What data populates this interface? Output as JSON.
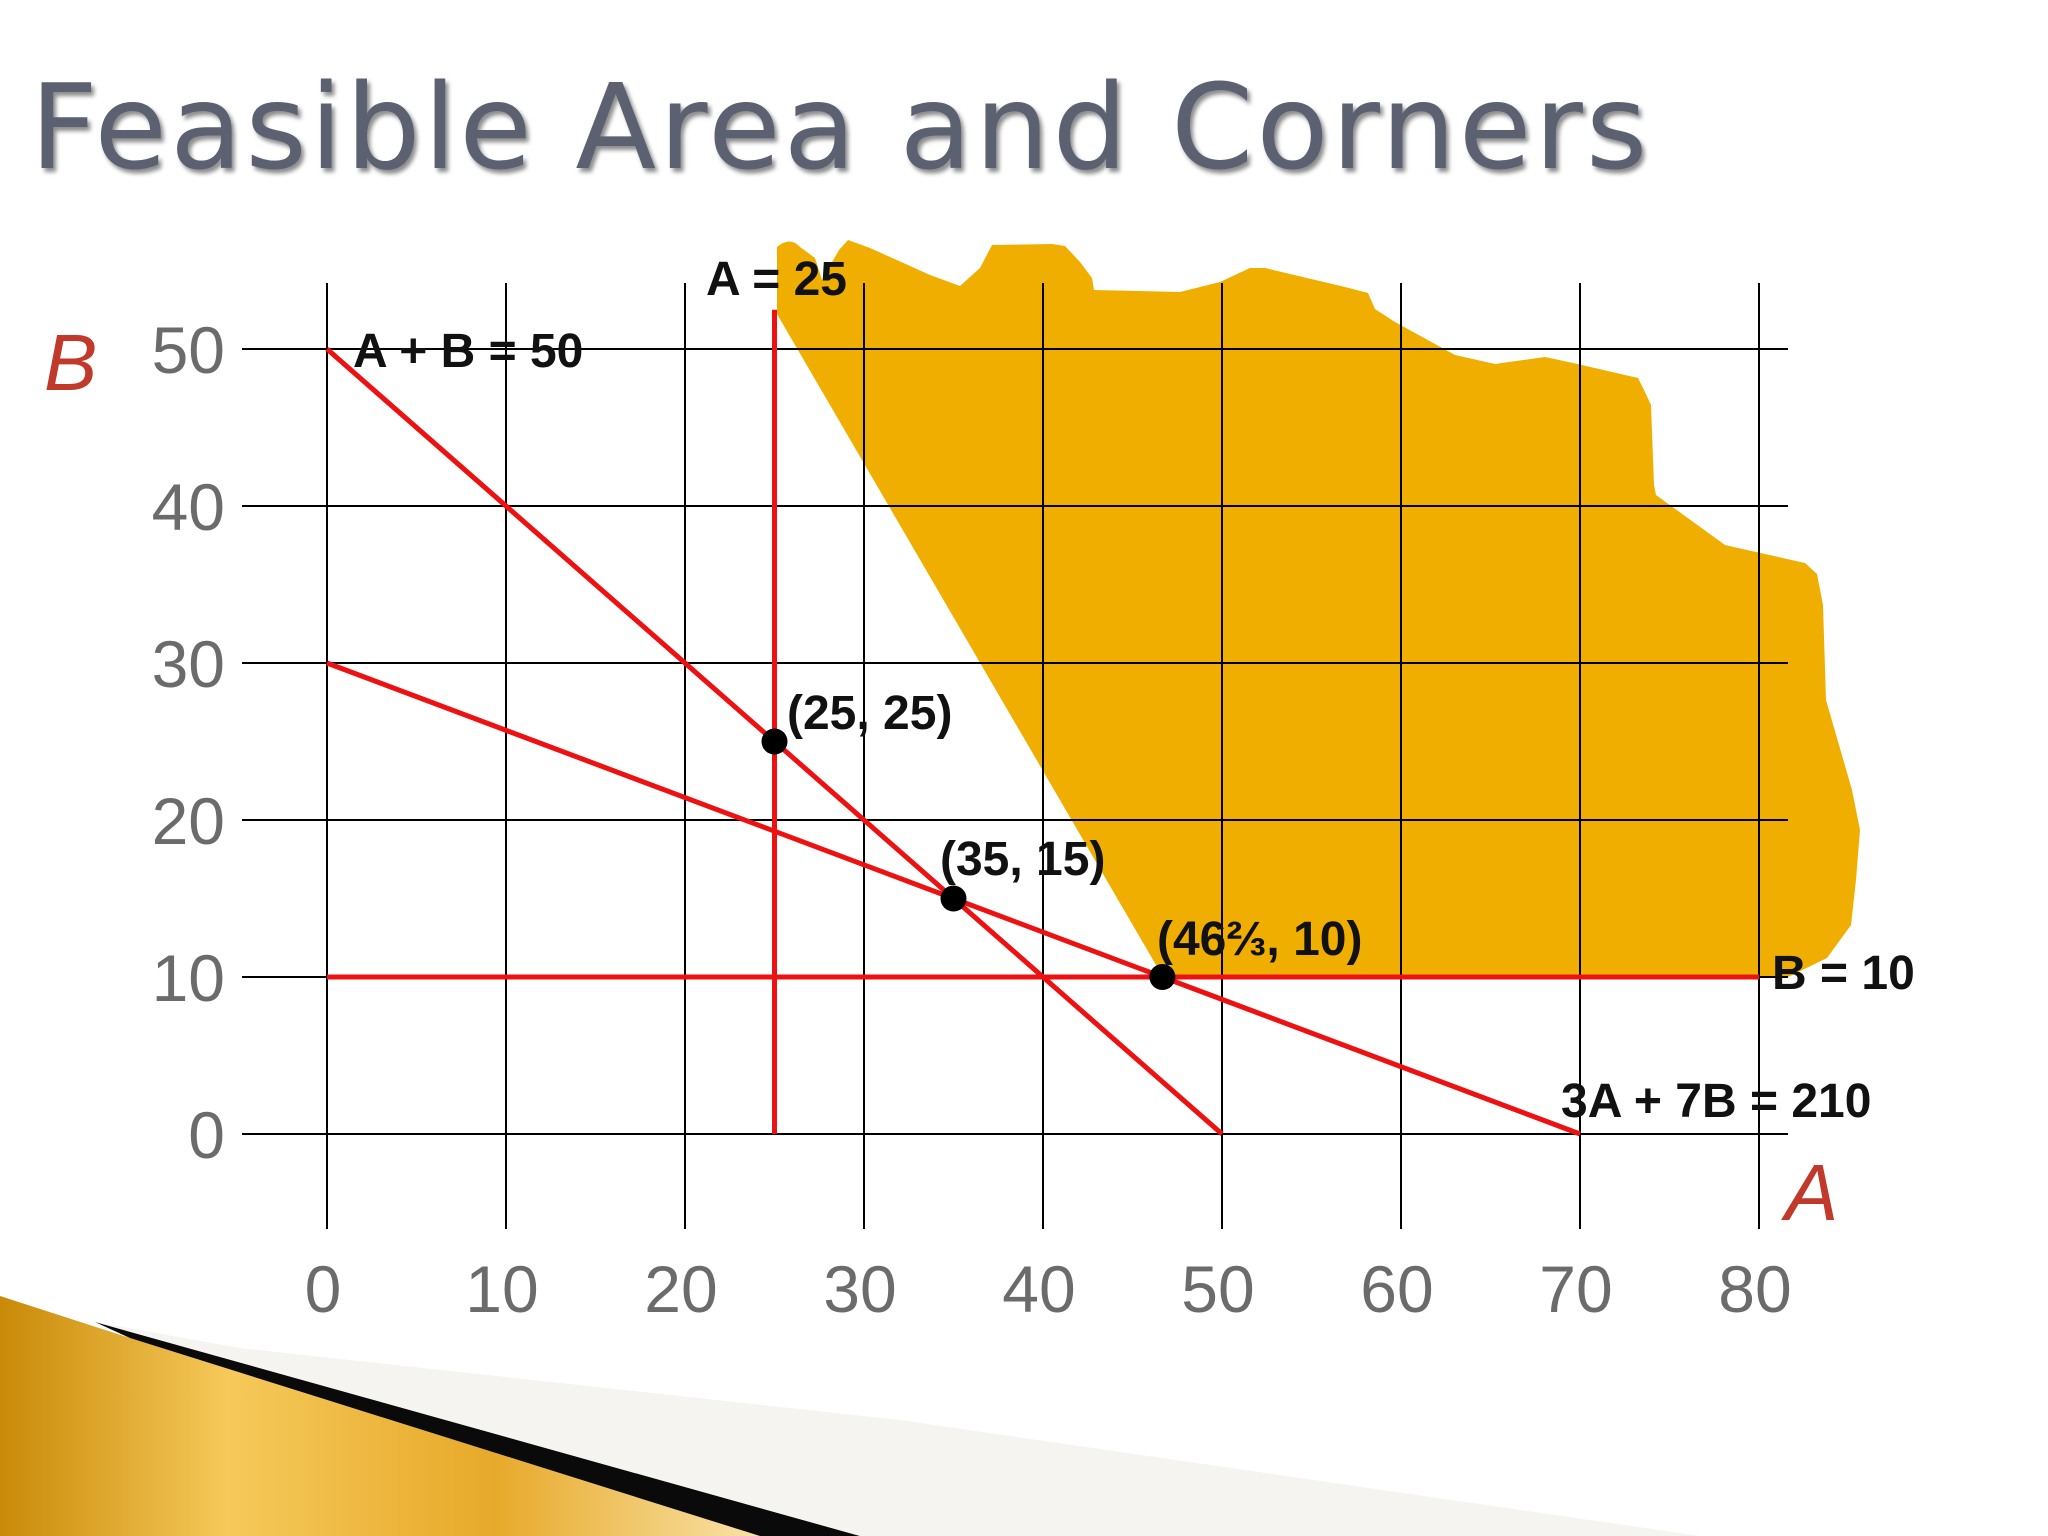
{
  "slide": {
    "title": "Feasible Area and Corners"
  },
  "colors": {
    "constraint_line": "#ee1111",
    "feasible_fill": "#f0ae00",
    "grid": "#000000",
    "tick_text": "#6b6b6b",
    "axis_name": "#c0392b",
    "title_text": "#5b6170"
  },
  "chart_data": {
    "type": "line",
    "title": "Feasible Area and Corners",
    "xlabel": "A",
    "ylabel": "B",
    "xlim": [
      0,
      80
    ],
    "ylim": [
      0,
      50
    ],
    "x_ticks": [
      "0",
      "10",
      "20",
      "30",
      "40",
      "50",
      "60",
      "70",
      "80"
    ],
    "y_ticks": [
      "0",
      "10",
      "20",
      "30",
      "40",
      "50"
    ],
    "grid": true,
    "series": [
      {
        "name": "A + B = 50",
        "points": [
          [
            0,
            50
          ],
          [
            50,
            0
          ]
        ]
      },
      {
        "name": "A = 25",
        "points": [
          [
            25,
            0
          ],
          [
            25,
            52.5
          ]
        ]
      },
      {
        "name": "B = 10",
        "points": [
          [
            0,
            10
          ],
          [
            80,
            10
          ]
        ]
      },
      {
        "name": "3A + 7B = 210",
        "points": [
          [
            0,
            30
          ],
          [
            70,
            0
          ]
        ]
      }
    ],
    "feasible_region": {
      "description": "irregular shaded area above the constraint lines, extending up and to the right",
      "boundary_points": [
        [
          25,
          25
        ],
        [
          35,
          15
        ],
        [
          46.67,
          10
        ],
        [
          80,
          10
        ]
      ]
    },
    "corner_points": [
      {
        "label": "(25, 25)",
        "x": 25,
        "y": 25
      },
      {
        "label": "(35, 15)",
        "x": 35,
        "y": 15
      },
      {
        "label": "(46⅔, 10)",
        "x": 46.67,
        "y": 10
      }
    ]
  }
}
